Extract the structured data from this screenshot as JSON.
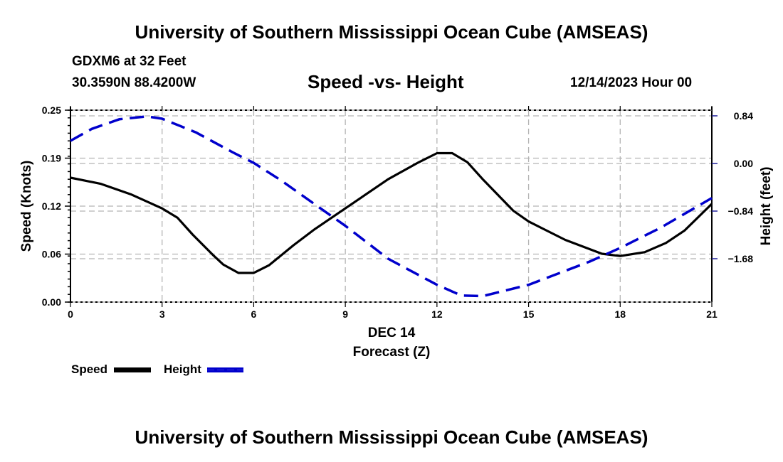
{
  "header": {
    "title": "University of Southern Mississippi Ocean Cube (AMSEAS)",
    "station": "GDXM6 at 32 Feet",
    "coordinates": "30.3590N  88.4200W",
    "subtitle": "Speed -vs- Height",
    "datetime": "12/14/2023 Hour 00"
  },
  "footer": {
    "title": "University of Southern Mississippi Ocean Cube (AMSEAS)"
  },
  "chart_data": {
    "type": "line",
    "title": "Speed -vs- Height",
    "xlabel": "Forecast (Z)",
    "xsublabel": "DEC 14",
    "ylabel": "Speed (Knots)",
    "y2label": "Height (feet)",
    "xlim": [
      0,
      21
    ],
    "ylim": [
      0,
      0.25
    ],
    "y2lim": [
      -2.445,
      0.94
    ],
    "x_ticks": [
      0,
      3,
      6,
      9,
      12,
      15,
      18,
      21
    ],
    "x_tick_labels": [
      "0",
      "3",
      "6",
      "9",
      "12",
      "15",
      "18",
      "21"
    ],
    "y_ticks": [
      0,
      0.0625,
      0.125,
      0.1875,
      0.25
    ],
    "y_tick_labels": [
      "0.00",
      "0.06",
      "0.12",
      "0.19",
      "0.25"
    ],
    "y2_ticks": [
      0.84,
      0,
      -0.84,
      -1.68
    ],
    "y2_tick_labels": [
      "0.84",
      "0.00",
      "−0.84",
      "−1.68"
    ],
    "grid": true,
    "legend": {
      "placement": "bottom-left",
      "entries": [
        {
          "label": "Speed",
          "color": "#000000",
          "style": "solid"
        },
        {
          "label": "Height",
          "color": "#0000cc",
          "style": "dashed"
        }
      ]
    },
    "series": [
      {
        "name": "Speed",
        "axis": "left",
        "color": "#000000",
        "style": "solid",
        "x": [
          0,
          1,
          2,
          3,
          3.5,
          4,
          4.7,
          5,
          5.5,
          6,
          6.5,
          7.3,
          8,
          9,
          10.4,
          11.4,
          12,
          12.5,
          13,
          13.5,
          14.5,
          15,
          16.2,
          17.4,
          18,
          18.8,
          19.5,
          20.1,
          21
        ],
        "values": [
          0.162,
          0.154,
          0.14,
          0.122,
          0.11,
          0.088,
          0.06,
          0.049,
          0.038,
          0.038,
          0.048,
          0.074,
          0.095,
          0.122,
          0.16,
          0.182,
          0.194,
          0.194,
          0.182,
          0.16,
          0.119,
          0.105,
          0.081,
          0.063,
          0.06,
          0.065,
          0.077,
          0.093,
          0.128
        ]
      },
      {
        "name": "Height",
        "axis": "right",
        "color": "#0000cc",
        "style": "dashed",
        "x": [
          0,
          0.7,
          1.6,
          2.5,
          3,
          4.1,
          5.3,
          6,
          6.9,
          8,
          9,
          10.4,
          12,
          12.8,
          13.5,
          15,
          17,
          18,
          19.3,
          21
        ],
        "values": [
          0.4,
          0.61,
          0.78,
          0.83,
          0.79,
          0.55,
          0.2,
          0.01,
          -0.3,
          -0.72,
          -1.1,
          -1.68,
          -2.14,
          -2.33,
          -2.34,
          -2.14,
          -1.73,
          -1.49,
          -1.14,
          -0.61
        ]
      }
    ]
  }
}
